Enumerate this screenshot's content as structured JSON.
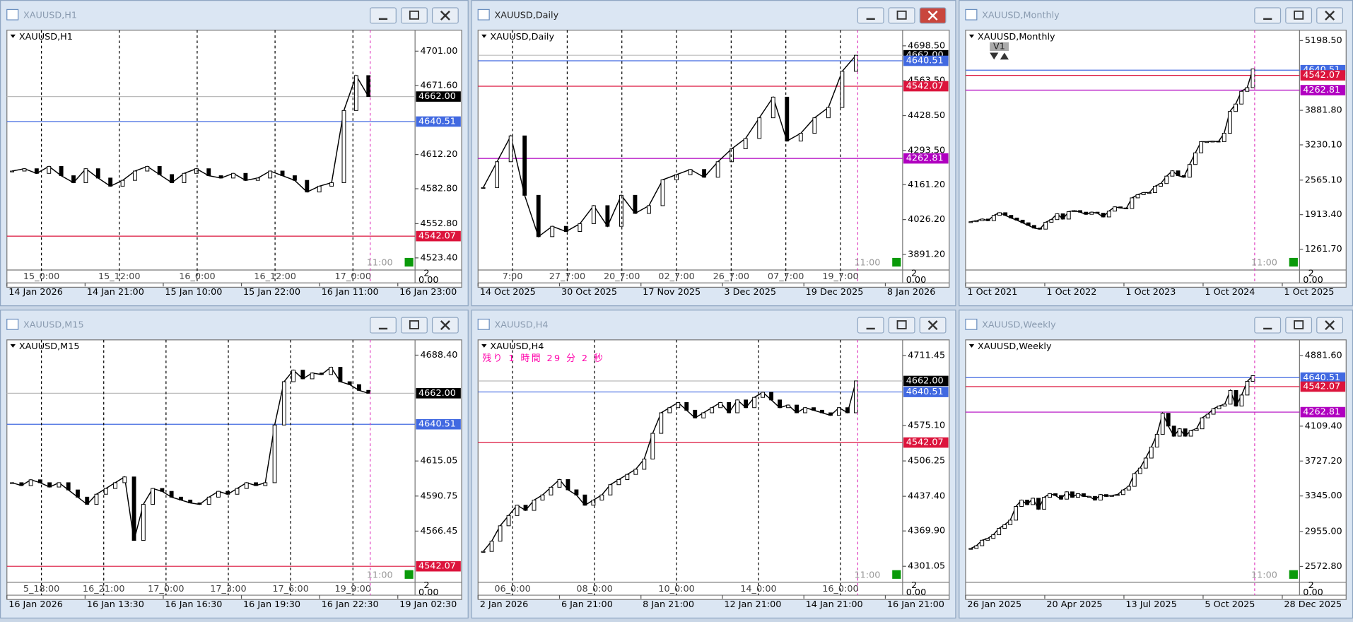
{
  "windows": [
    {
      "title": "XAUUSD,H1",
      "label": "XAUUSD,H1",
      "corner": "11:00",
      "ylim": [
        4513,
        4719
      ],
      "yticks": [
        {
          "value": 4701,
          "label": "4701.00"
        },
        {
          "value": 4671.6,
          "label": "4671.60"
        },
        {
          "value": 4612.2,
          "label": "4612.20"
        },
        {
          "value": 4582.8,
          "label": "4582.80"
        },
        {
          "value": 4552.8,
          "label": "4552.80"
        },
        {
          "value": 4523.4,
          "label": "4523.40"
        }
      ],
      "markers": [
        {
          "value": 4662,
          "label": "4662.00",
          "color": "#000000"
        },
        {
          "value": 4640.51,
          "label": "4640.51",
          "color": "#4169e1"
        },
        {
          "value": 4542.07,
          "label": "4542.07",
          "color": "#dc143c"
        }
      ],
      "sub_scale": [
        "2",
        "0.00"
      ],
      "time_labels": [
        "14 Jan 2026",
        "14 Jan 21:00",
        "15 Jan 10:00",
        "15 Jan 22:00",
        "16 Jan 11:00",
        "16 Jan 23:00"
      ],
      "separators": [
        "15_0:00",
        "15_12:00",
        "16_0:00",
        "16_12:00",
        "17_0:00"
      ],
      "closes": [
        4598,
        4600,
        4596,
        4602,
        4594,
        4588,
        4600,
        4592,
        4585,
        4590,
        4598,
        4602,
        4595,
        4588,
        4596,
        4600,
        4594,
        4592,
        4596,
        4590,
        4592,
        4598,
        4594,
        4590,
        4580,
        4585,
        4588,
        4650,
        4680,
        4662
      ]
    },
    {
      "title": "XAUUSD,Daily",
      "label": "XAUUSD,Daily",
      "corner": "11:00",
      "ylim": [
        3831,
        4759
      ],
      "yticks": [
        {
          "value": 4698.5,
          "label": "4698.50"
        },
        {
          "value": 4563.5,
          "label": "4563.50"
        },
        {
          "value": 4428.5,
          "label": "4428.50"
        },
        {
          "value": 4293.5,
          "label": "4293.50"
        },
        {
          "value": 4161.2,
          "label": "4161.20"
        },
        {
          "value": 4026.2,
          "label": "4026.20"
        },
        {
          "value": 3891.2,
          "label": "3891.20"
        }
      ],
      "markers": [
        {
          "value": 4662,
          "label": "4662.00",
          "color": "#000000"
        },
        {
          "value": 4640.51,
          "label": "4640.51",
          "color": "#4169e1"
        },
        {
          "value": 4542.07,
          "label": "4542.07",
          "color": "#dc143c"
        },
        {
          "value": 4262.81,
          "label": "4262.81",
          "color": "#b000c0"
        }
      ],
      "sub_scale": [
        "2",
        "0.00"
      ],
      "time_labels": [
        "14 Oct 2025",
        "30 Oct 2025",
        "17 Nov 2025",
        "3 Dec 2025",
        "19 Dec 2025",
        "8 Jan 2026"
      ],
      "separators": [
        "7:00",
        "27_7:00",
        "20_7:00",
        "02_7:00",
        "26_7:00",
        "07_7:00",
        "19_7:00"
      ],
      "closes": [
        4150,
        4250,
        4350,
        4120,
        3960,
        4000,
        3980,
        4010,
        4080,
        4000,
        4120,
        4050,
        4080,
        4180,
        4200,
        4220,
        4190,
        4250,
        4300,
        4340,
        4420,
        4500,
        4330,
        4360,
        4420,
        4460,
        4600,
        4662
      ]
    },
    {
      "title": "XAUUSD,Monthly",
      "label": "XAUUSD,Monthly",
      "button": "V1",
      "corner": "11:00",
      "ylim": [
        869,
        5394
      ],
      "yticks": [
        {
          "value": 5198.5,
          "label": "5198.50"
        },
        {
          "value": 3881.8,
          "label": "3881.80"
        },
        {
          "value": 3230.1,
          "label": "3230.10"
        },
        {
          "value": 2565.1,
          "label": "2565.10"
        },
        {
          "value": 1913.4,
          "label": "1913.40"
        },
        {
          "value": 1261.7,
          "label": "1261.70"
        }
      ],
      "markers": [
        {
          "value": 4640.51,
          "label": "4640.51",
          "color": "#4169e1"
        },
        {
          "value": 4542.07,
          "label": "4542.07",
          "color": "#dc143c"
        },
        {
          "value": 4262.81,
          "label": "4262.81",
          "color": "#b000c0"
        }
      ],
      "sub_scale": [
        "2",
        "0.00"
      ],
      "time_labels": [
        "1 Oct 2021",
        "1 Oct 2022",
        "1 Oct 2023",
        "1 Oct 2024",
        "1 Oct 2025"
      ],
      "closes": [
        1780,
        1800,
        1830,
        1800,
        1900,
        1950,
        1900,
        1850,
        1810,
        1760,
        1710,
        1660,
        1640,
        1770,
        1820,
        1930,
        1830,
        1970,
        1990,
        1960,
        1920,
        1960,
        1940,
        1870,
        1980,
        2060,
        2040,
        2030,
        2230,
        2290,
        2330,
        2330,
        2450,
        2500,
        2640,
        2740,
        2650,
        2620,
        2860,
        3080,
        3290,
        3290,
        3300,
        3290,
        3450,
        3860,
        4000,
        4240,
        4310,
        4662
      ]
    },
    {
      "title": "XAUUSD,M15",
      "label": "XAUUSD,M15",
      "corner": "11:00",
      "ylim": [
        4531,
        4699
      ],
      "yticks": [
        {
          "value": 4688.4,
          "label": "4688.40"
        },
        {
          "value": 4615.05,
          "label": "4615.05"
        },
        {
          "value": 4590.75,
          "label": "4590.75"
        },
        {
          "value": 4566.45,
          "label": "4566.45"
        }
      ],
      "markers": [
        {
          "value": 4662,
          "label": "4662.00",
          "color": "#000000"
        },
        {
          "value": 4640.51,
          "label": "4640.51",
          "color": "#4169e1"
        },
        {
          "value": 4542.07,
          "label": "4542.07",
          "color": "#dc143c"
        }
      ],
      "sub_scale": [
        "2",
        "0.00"
      ],
      "time_labels": [
        "16 Jan 2026",
        "16 Jan 13:30",
        "16 Jan 16:30",
        "16 Jan 19:30",
        "16 Jan 22:30",
        "19 Jan 02:30"
      ],
      "separators": [
        "5_18:00",
        "16_21:00",
        "17_0:00",
        "17_3:00",
        "17_6:00",
        "19_9:00"
      ],
      "closes": [
        4600,
        4598,
        4602,
        4600,
        4597,
        4600,
        4595,
        4590,
        4585,
        4592,
        4596,
        4600,
        4604,
        4560,
        4585,
        4596,
        4594,
        4590,
        4588,
        4586,
        4585,
        4590,
        4594,
        4592,
        4596,
        4600,
        4598,
        4600,
        4640,
        4670,
        4678,
        4672,
        4676,
        4675,
        4680,
        4670,
        4668,
        4664,
        4662
      ]
    },
    {
      "title": "XAUUSD,H4",
      "label": "XAUUSD,H4",
      "countdown": "残り 1 時間 29 分 2 秒",
      "corner": "11:00",
      "ylim": [
        4270,
        4742
      ],
      "yticks": [
        {
          "value": 4711.45,
          "label": "4711.45"
        },
        {
          "value": 4575.1,
          "label": "4575.10"
        },
        {
          "value": 4506.25,
          "label": "4506.25"
        },
        {
          "value": 4437.4,
          "label": "4437.40"
        },
        {
          "value": 4369.9,
          "label": "4369.90"
        },
        {
          "value": 4301.05,
          "label": "4301.05"
        }
      ],
      "markers": [
        {
          "value": 4662,
          "label": "4662.00",
          "color": "#000000"
        },
        {
          "value": 4640.51,
          "label": "4640.51",
          "color": "#4169e1"
        },
        {
          "value": 4542.07,
          "label": "4542.07",
          "color": "#dc143c"
        }
      ],
      "sub_scale": [
        "2",
        "0.00"
      ],
      "time_labels": [
        "2 Jan 2026",
        "6 Jan 21:00",
        "8 Jan 21:00",
        "12 Jan 21:00",
        "14 Jan 21:00",
        "16 Jan 21:00"
      ],
      "separators": [
        "06_0:00",
        "08_0:00",
        "10_0:00",
        "14_0:00",
        "16_0:00"
      ],
      "closes": [
        4330,
        4350,
        4380,
        4400,
        4420,
        4410,
        4430,
        4440,
        4455,
        4470,
        4450,
        4440,
        4420,
        4430,
        4440,
        4460,
        4470,
        4480,
        4490,
        4510,
        4560,
        4600,
        4610,
        4620,
        4605,
        4590,
        4600,
        4610,
        4620,
        4600,
        4625,
        4610,
        4630,
        4640,
        4625,
        4610,
        4615,
        4600,
        4610,
        4605,
        4600,
        4595,
        4610,
        4600,
        4662
      ]
    },
    {
      "title": "XAUUSD,Weekly",
      "label": "XAUUSD,Weekly",
      "corner": "11:00",
      "ylim": [
        2400,
        5054
      ],
      "yticks": [
        {
          "value": 4881.6,
          "label": "4881.60"
        },
        {
          "value": 4109.4,
          "label": "4109.40"
        },
        {
          "value": 3727.2,
          "label": "3727.20"
        },
        {
          "value": 3345,
          "label": "3345.00"
        },
        {
          "value": 2955,
          "label": "2955.00"
        },
        {
          "value": 2572.8,
          "label": "2572.80"
        }
      ],
      "markers": [
        {
          "value": 4640.51,
          "label": "4640.51",
          "color": "#4169e1"
        },
        {
          "value": 4542.07,
          "label": "4542.07",
          "color": "#dc143c"
        },
        {
          "value": 4262.81,
          "label": "4262.81",
          "color": "#b000c0"
        }
      ],
      "sub_scale": [
        "2",
        "0.00"
      ],
      "time_labels": [
        "26 Jan 2025",
        "20 Apr 2025",
        "13 Jul 2025",
        "5 Oct 2025",
        "28 Dec 2025"
      ],
      "closes": [
        2770,
        2800,
        2860,
        2880,
        2920,
        2990,
        3030,
        3080,
        3230,
        3300,
        3250,
        3320,
        3200,
        3330,
        3370,
        3350,
        3310,
        3390,
        3330,
        3370,
        3340,
        3340,
        3300,
        3360,
        3340,
        3350,
        3360,
        3410,
        3450,
        3590,
        3650,
        3760,
        3880,
        4020,
        4250,
        4110,
        4000,
        4080,
        4000,
        4060,
        4080,
        4200,
        4240,
        4300,
        4330,
        4350,
        4500,
        4330,
        4450,
        4600,
        4662
      ]
    }
  ]
}
